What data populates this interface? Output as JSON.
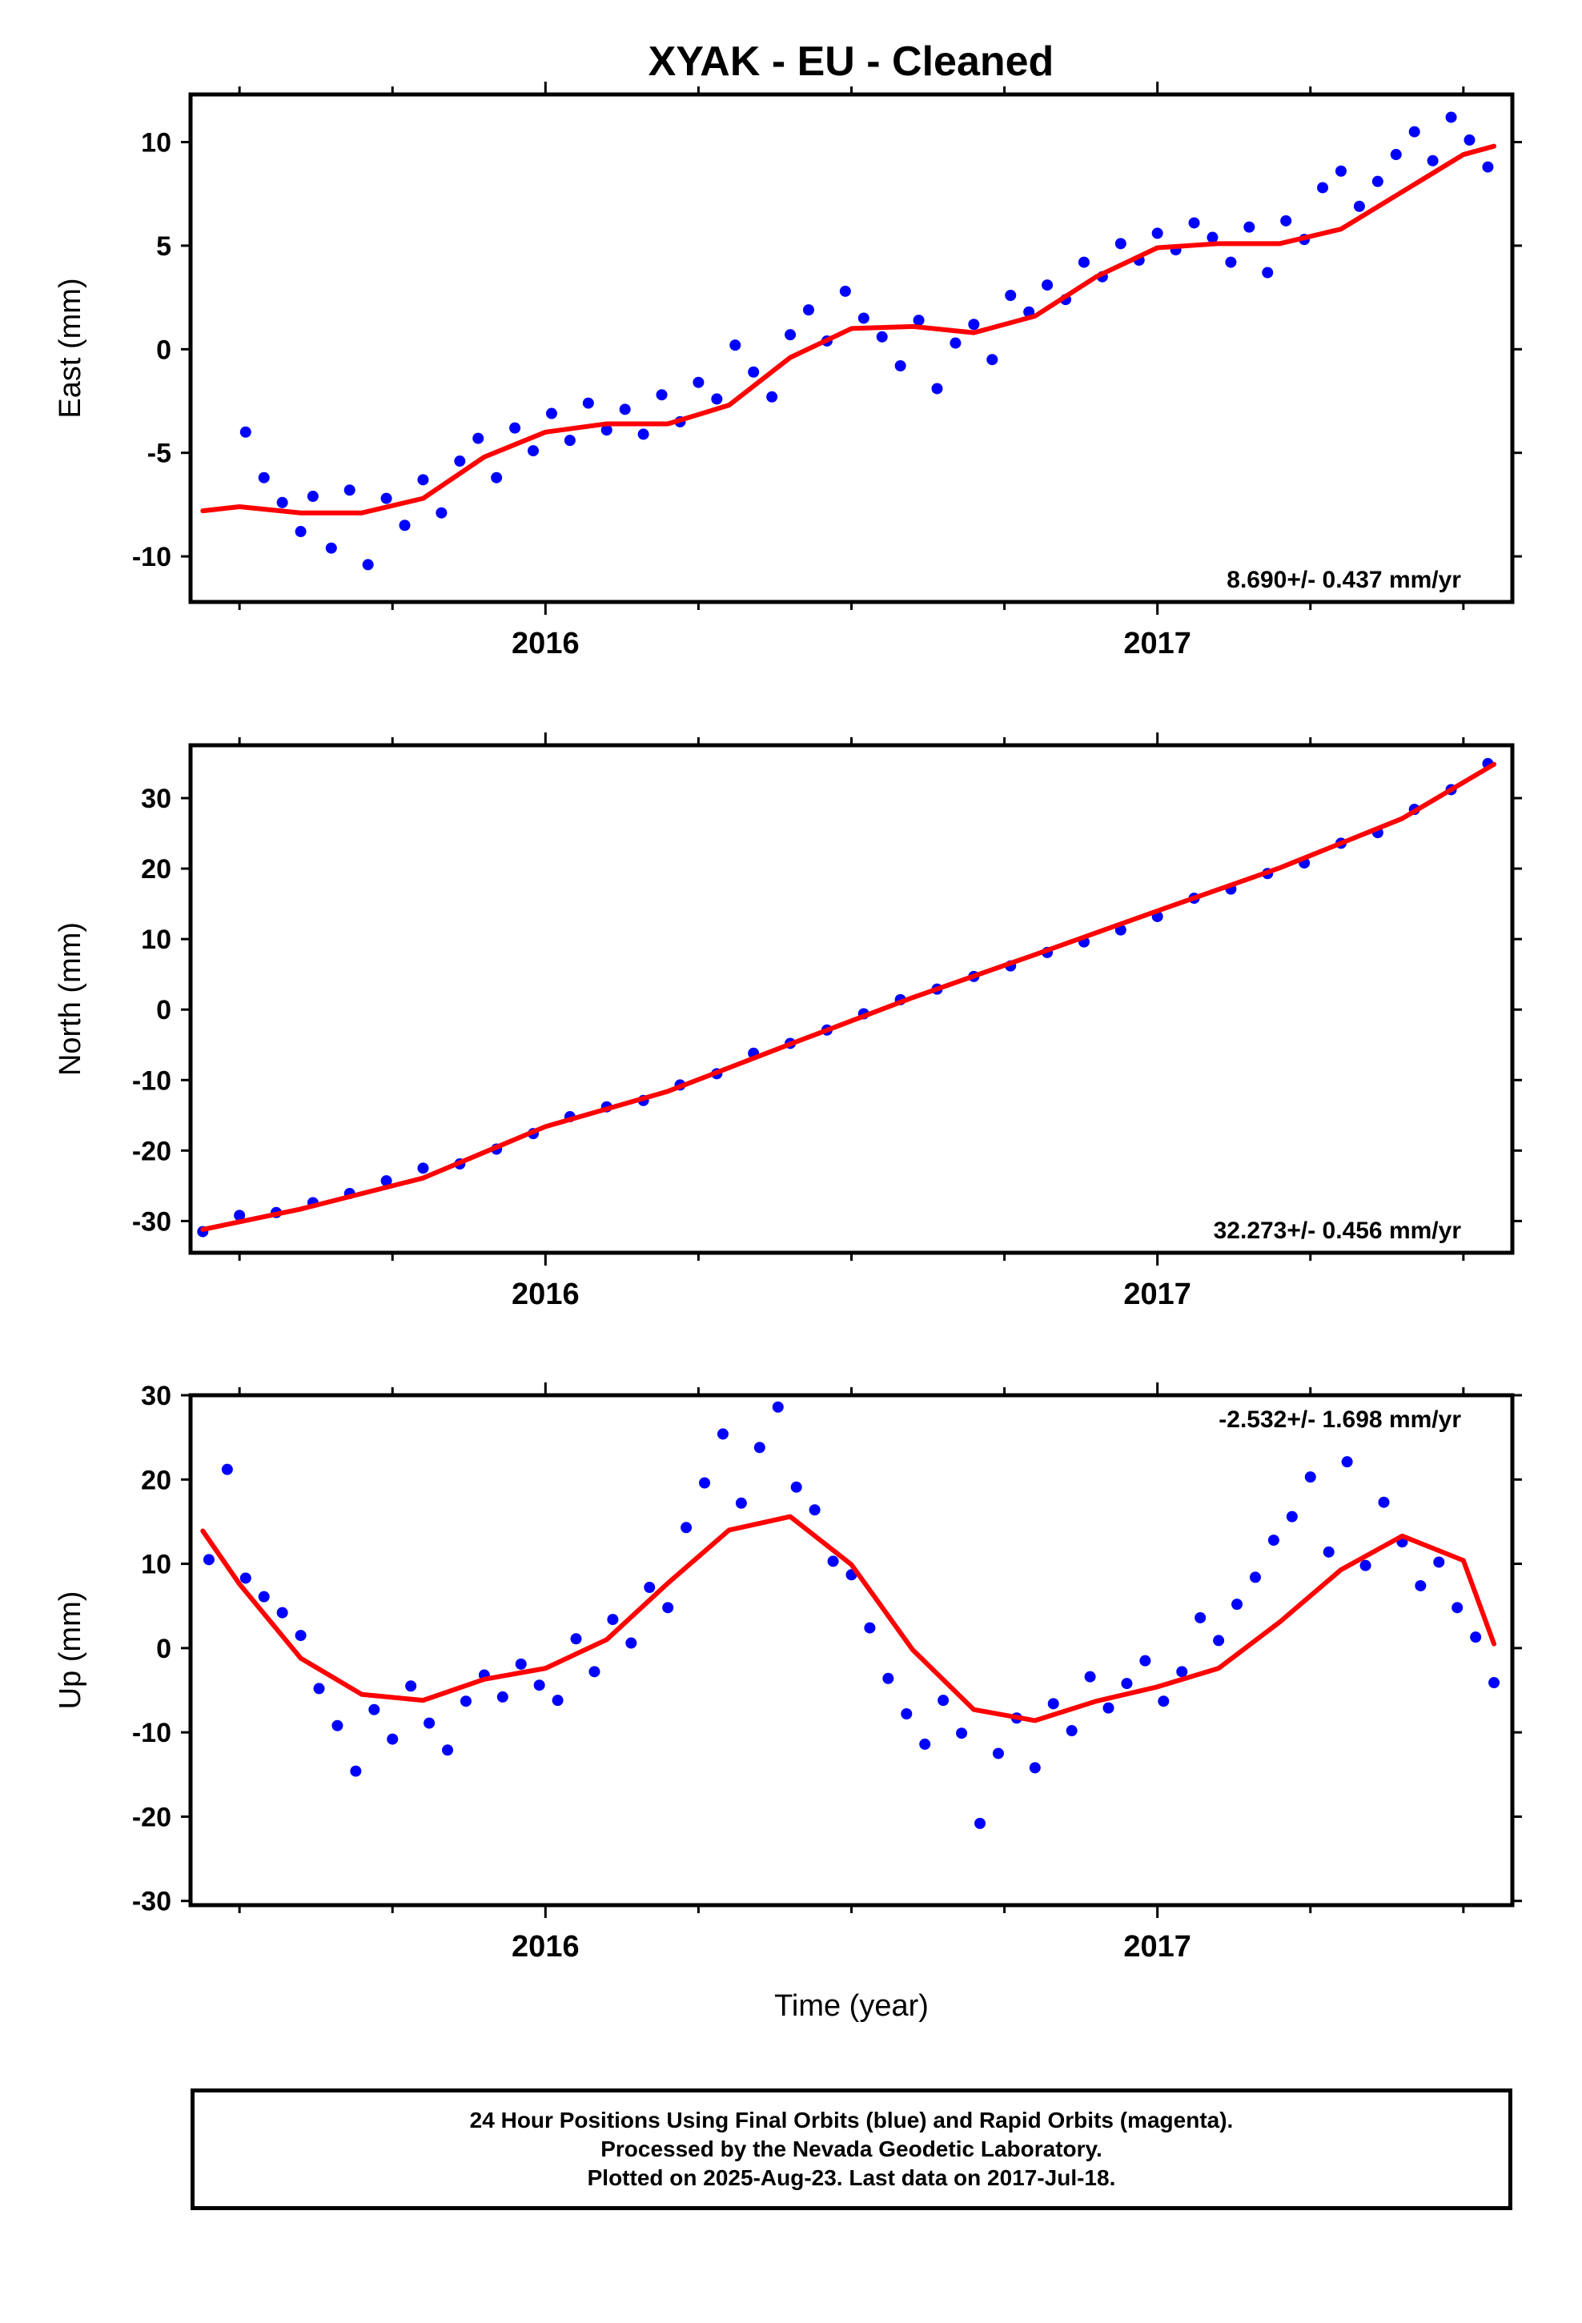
{
  "title": "XYAK  - EU - Cleaned",
  "colors": {
    "points": "#0000ff",
    "fit": "#ff0000",
    "frame": "#000000"
  },
  "chart_data": [
    {
      "type": "scatter",
      "ylabel": "East (mm)",
      "xlabel": "",
      "x_tick_labels": [
        "2016",
        "2017"
      ],
      "y_ticks": [
        -10,
        -5,
        0,
        5,
        10
      ],
      "xlim": [
        2015.42,
        2017.58
      ],
      "ylim": [
        -12.2,
        12.3
      ],
      "rate_label": "8.690+/- 0.437 mm/yr",
      "rate_position": "bottom-right",
      "series": [
        {
          "kind": "points",
          "x": [
            2015.51,
            2015.54,
            2015.57,
            2015.6,
            2015.62,
            2015.65,
            2015.68,
            2015.71,
            2015.74,
            2015.77,
            2015.8,
            2015.83,
            2015.86,
            2015.89,
            2015.92,
            2015.95,
            2015.98,
            2016.01,
            2016.04,
            2016.07,
            2016.1,
            2016.13,
            2016.16,
            2016.19,
            2016.22,
            2016.25,
            2016.28,
            2016.31,
            2016.34,
            2016.37,
            2016.4,
            2016.43,
            2016.46,
            2016.49,
            2016.52,
            2016.55,
            2016.58,
            2016.61,
            2016.64,
            2016.67,
            2016.7,
            2016.73,
            2016.76,
            2016.79,
            2016.82,
            2016.85,
            2016.88,
            2016.91,
            2016.94,
            2016.97,
            2017.0,
            2017.03,
            2017.06,
            2017.09,
            2017.12,
            2017.15,
            2017.18,
            2017.21,
            2017.24,
            2017.27,
            2017.3,
            2017.33,
            2017.36,
            2017.39,
            2017.42,
            2017.45,
            2017.48,
            2017.51,
            2017.54
          ],
          "y": [
            -4,
            -6.2,
            -7.4,
            -8.8,
            -7.1,
            -9.6,
            -6.8,
            -10.4,
            -7.2,
            -8.5,
            -6.3,
            -7.9,
            -5.4,
            -4.3,
            -6.2,
            -3.8,
            -4.9,
            -3.1,
            -4.4,
            -2.6,
            -3.9,
            -2.9,
            -4.1,
            -2.2,
            -3.5,
            -1.6,
            -2.4,
            0.2,
            -1.1,
            -2.3,
            0.7,
            1.9,
            0.4,
            2.8,
            1.5,
            0.6,
            -0.8,
            1.4,
            -1.9,
            0.3,
            1.2,
            -0.5,
            2.6,
            1.8,
            3.1,
            2.4,
            4.2,
            3.5,
            5.1,
            4.3,
            5.6,
            4.8,
            6.1,
            5.4,
            4.2,
            5.9,
            3.7,
            6.2,
            5.3,
            7.8,
            8.6,
            6.9,
            8.1,
            9.4,
            10.5,
            9.1,
            11.2,
            10.1,
            8.8
          ]
        },
        {
          "kind": "fit",
          "x": [
            2015.44,
            2015.5,
            2015.6,
            2015.7,
            2015.8,
            2015.9,
            2016.0,
            2016.1,
            2016.2,
            2016.3,
            2016.4,
            2016.5,
            2016.6,
            2016.7,
            2016.8,
            2016.9,
            2017.0,
            2017.1,
            2017.2,
            2017.3,
            2017.4,
            2017.5,
            2017.55
          ],
          "y": [
            -7.8,
            -7.6,
            -7.9,
            -7.9,
            -7.2,
            -5.2,
            -4.0,
            -3.6,
            -3.6,
            -2.7,
            -0.4,
            1.0,
            1.1,
            0.8,
            1.6,
            3.5,
            4.9,
            5.1,
            5.1,
            5.8,
            7.6,
            9.4,
            9.8
          ]
        }
      ]
    },
    {
      "type": "scatter",
      "ylabel": "North (mm)",
      "xlabel": "",
      "x_tick_labels": [
        "2016",
        "2017"
      ],
      "y_ticks": [
        -30,
        -20,
        -10,
        0,
        10,
        20,
        30
      ],
      "xlim": [
        2015.42,
        2017.58
      ],
      "ylim": [
        -34.5,
        37.5
      ],
      "rate_label": "32.273+/- 0.456 mm/yr",
      "rate_position": "bottom-right",
      "series": [
        {
          "kind": "points",
          "x": [
            2015.44,
            2015.5,
            2015.56,
            2015.62,
            2015.68,
            2015.74,
            2015.8,
            2015.86,
            2015.92,
            2015.98,
            2016.04,
            2016.1,
            2016.16,
            2016.22,
            2016.28,
            2016.34,
            2016.4,
            2016.46,
            2016.52,
            2016.58,
            2016.64,
            2016.7,
            2016.76,
            2016.82,
            2016.88,
            2016.94,
            2017.0,
            2017.06,
            2017.12,
            2017.18,
            2017.24,
            2017.3,
            2017.36,
            2017.42,
            2017.48,
            2017.54
          ],
          "y": [
            -31.5,
            -29.2,
            -28.8,
            -27.4,
            -26.1,
            -24.3,
            -22.5,
            -21.9,
            -19.8,
            -17.6,
            -15.2,
            -13.8,
            -12.9,
            -10.7,
            -9.1,
            -6.2,
            -4.8,
            -2.9,
            -0.6,
            1.4,
            2.9,
            4.7,
            6.2,
            8.1,
            9.6,
            11.3,
            13.2,
            15.8,
            17.1,
            19.3,
            20.8,
            23.6,
            25.1,
            28.4,
            31.2,
            34.9
          ]
        },
        {
          "kind": "fit",
          "x": [
            2015.44,
            2015.6,
            2015.8,
            2016.0,
            2016.2,
            2016.4,
            2016.6,
            2016.8,
            2017.0,
            2017.2,
            2017.4,
            2017.55
          ],
          "y": [
            -31.2,
            -28.3,
            -23.9,
            -16.6,
            -11.6,
            -4.9,
            1.7,
            7.8,
            14.0,
            20.1,
            27.1,
            34.8
          ]
        }
      ]
    },
    {
      "type": "scatter",
      "ylabel": "Up (mm)",
      "xlabel": "Time (year)",
      "x_tick_labels": [
        "2016",
        "2017"
      ],
      "y_ticks": [
        -30,
        -20,
        -10,
        0,
        10,
        20,
        30
      ],
      "xlim": [
        2015.42,
        2017.58
      ],
      "ylim": [
        -30.5,
        30
      ],
      "rate_label": "-2.532+/- 1.698 mm/yr",
      "rate_position": "top-right",
      "series": [
        {
          "kind": "points",
          "x": [
            2015.45,
            2015.48,
            2015.51,
            2015.54,
            2015.57,
            2015.6,
            2015.63,
            2015.66,
            2015.69,
            2015.72,
            2015.75,
            2015.78,
            2015.81,
            2015.84,
            2015.87,
            2015.9,
            2015.93,
            2015.96,
            2015.99,
            2016.02,
            2016.05,
            2016.08,
            2016.11,
            2016.14,
            2016.17,
            2016.2,
            2016.23,
            2016.26,
            2016.29,
            2016.32,
            2016.35,
            2016.38,
            2016.41,
            2016.44,
            2016.47,
            2016.5,
            2016.53,
            2016.56,
            2016.59,
            2016.62,
            2016.65,
            2016.68,
            2016.71,
            2016.74,
            2016.77,
            2016.8,
            2016.83,
            2016.86,
            2016.89,
            2016.92,
            2016.95,
            2016.98,
            2017.01,
            2017.04,
            2017.07,
            2017.1,
            2017.13,
            2017.16,
            2017.19,
            2017.22,
            2017.25,
            2017.28,
            2017.31,
            2017.34,
            2017.37,
            2017.4,
            2017.43,
            2017.46,
            2017.49,
            2017.52,
            2017.55
          ],
          "y": [
            10.5,
            21.2,
            8.3,
            6.1,
            4.2,
            1.5,
            -4.8,
            -9.2,
            -14.6,
            -7.3,
            -10.8,
            -4.5,
            -8.9,
            -12.1,
            -6.3,
            -3.2,
            -5.8,
            -1.9,
            -4.4,
            -6.2,
            1.1,
            -2.8,
            3.4,
            0.6,
            7.2,
            4.8,
            14.3,
            19.6,
            25.4,
            17.2,
            23.8,
            28.6,
            19.1,
            16.4,
            10.3,
            8.7,
            2.4,
            -3.6,
            -7.8,
            -11.4,
            -6.2,
            -10.1,
            -20.8,
            -12.5,
            -8.3,
            -14.2,
            -6.6,
            -9.8,
            -3.4,
            -7.1,
            -4.2,
            -1.5,
            -6.3,
            -2.8,
            3.6,
            0.9,
            5.2,
            8.4,
            12.8,
            15.6,
            20.3,
            11.4,
            22.1,
            9.8,
            17.3,
            12.6,
            7.4,
            10.2,
            4.8,
            1.3,
            -4.1
          ]
        },
        {
          "kind": "fit",
          "x": [
            2015.44,
            2015.5,
            2015.6,
            2015.7,
            2015.8,
            2015.9,
            2016.0,
            2016.1,
            2016.2,
            2016.3,
            2016.4,
            2016.5,
            2016.6,
            2016.7,
            2016.8,
            2016.9,
            2017.0,
            2017.1,
            2017.2,
            2017.3,
            2017.4,
            2017.5,
            2017.55
          ],
          "y": [
            13.9,
            7.6,
            -1.2,
            -5.5,
            -6.2,
            -3.7,
            -2.4,
            1.0,
            7.7,
            14.0,
            15.6,
            9.9,
            -0.2,
            -7.3,
            -8.6,
            -6.3,
            -4.6,
            -2.4,
            3.1,
            9.3,
            13.3,
            10.4,
            0.5
          ]
        }
      ]
    }
  ],
  "caption": {
    "line1": "24 Hour Positions Using Final Orbits (blue) and Rapid Orbits (magenta).",
    "line2": "Processed by the Nevada Geodetic Laboratory.",
    "line3": "Plotted on 2025-Aug-23. Last data on 2017-Jul-18."
  }
}
